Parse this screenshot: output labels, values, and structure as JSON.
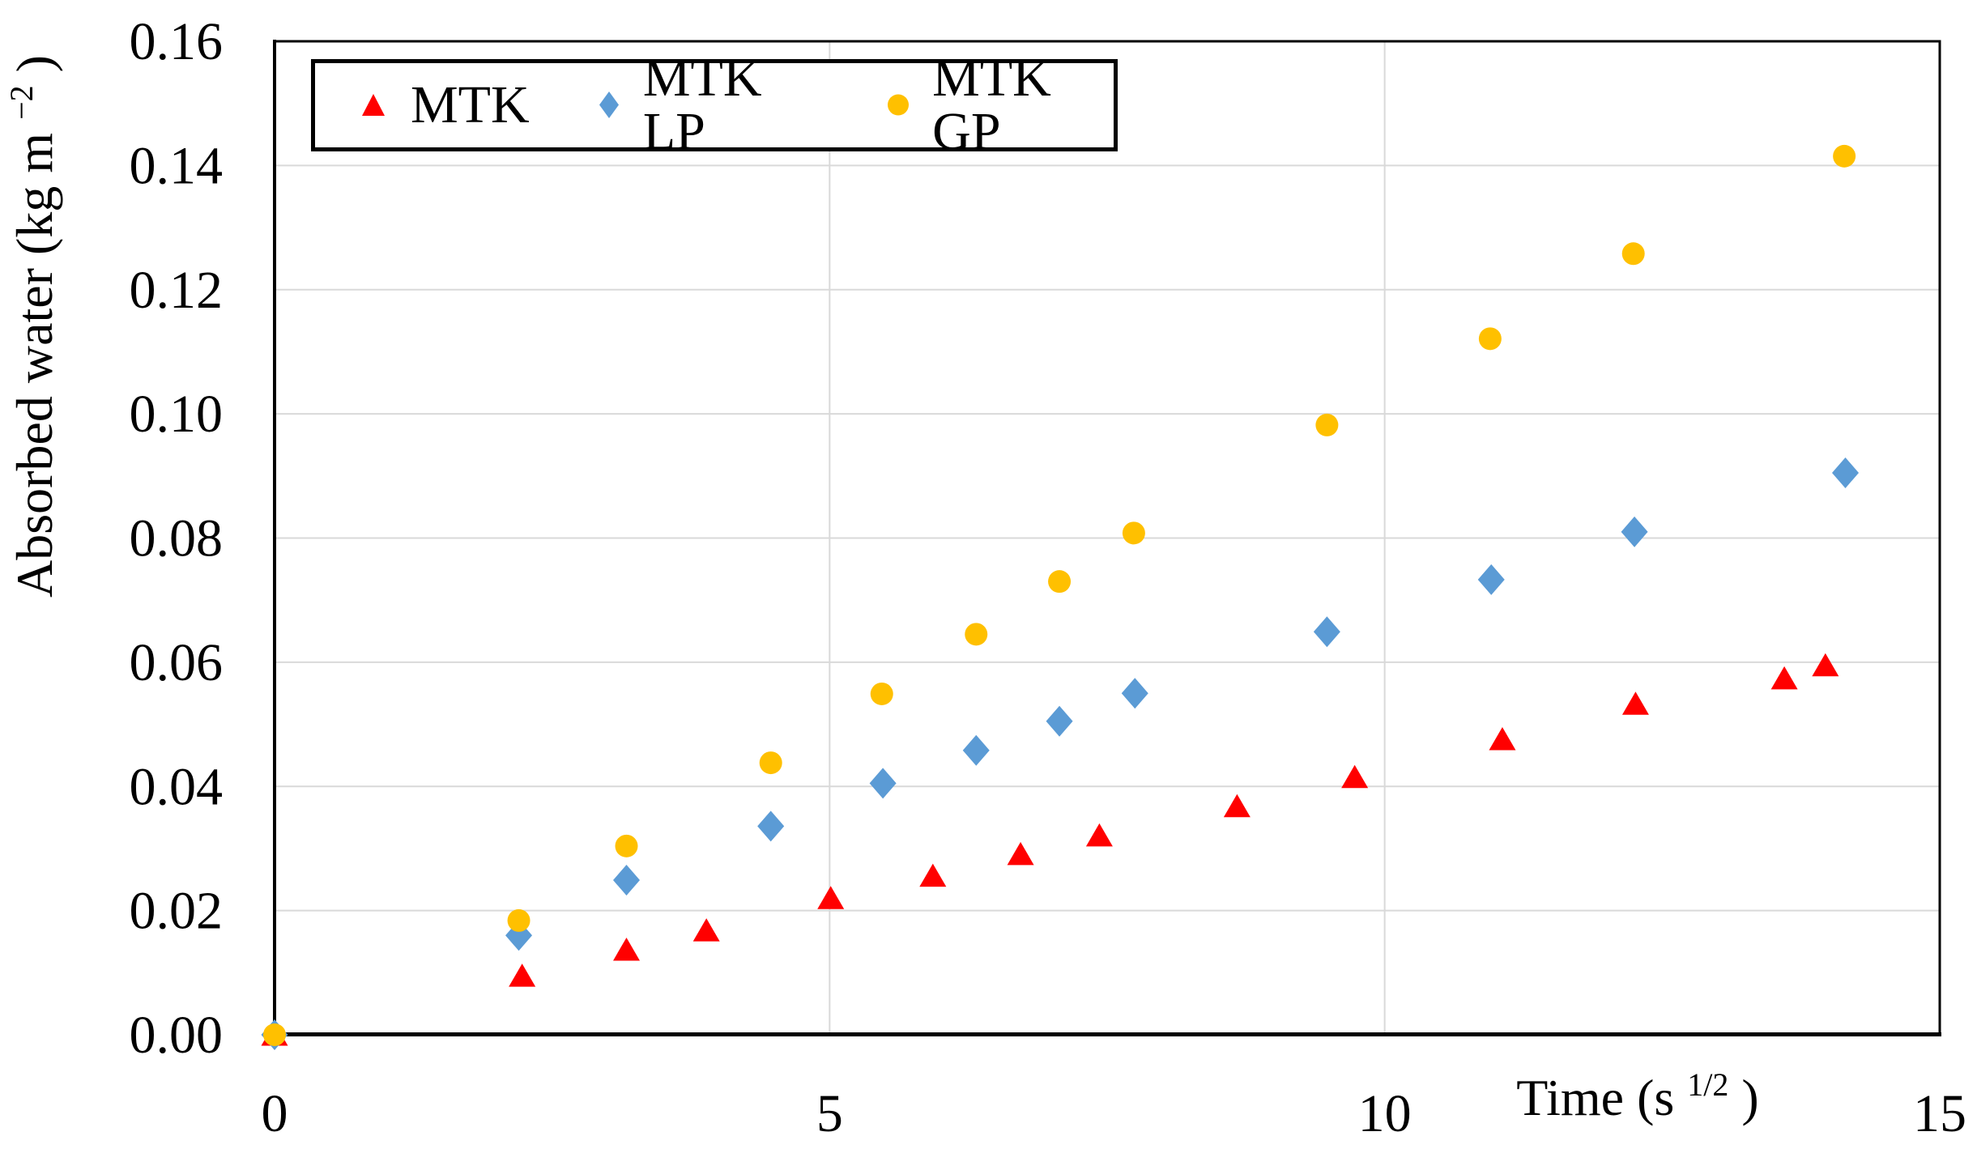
{
  "chart_data": {
    "type": "scatter",
    "title": "",
    "xlabel": "Time (s^1/2)",
    "xlabel_prefix": "Time (s",
    "xlabel_sup": "1/2",
    "xlabel_suffix": ")",
    "ylabel": "Absorbed water (kg m^-2)",
    "ylabel_prefix": "Absorbed water (kg m",
    "ylabel_sup": "−2",
    "ylabel_suffix": ")",
    "xlim": [
      0,
      15
    ],
    "ylim": [
      0,
      0.16
    ],
    "x_ticks": [
      "0",
      "5",
      "10",
      "15"
    ],
    "y_ticks": [
      "0.00",
      "0.02",
      "0.04",
      "0.06",
      "0.08",
      "0.10",
      "0.12",
      "0.14",
      "0.16"
    ],
    "grid": {
      "y_gridline_step": 0.02,
      "x_gridlines_at": [
        5,
        10
      ],
      "color": "#D9D9D9"
    },
    "legend_position": "top-left",
    "colors": {
      "axis": "#000000",
      "background": "#FFFFFF"
    },
    "series": [
      {
        "name": "MTK",
        "marker": "triangle",
        "color": "#FF0000",
        "points": [
          [
            0,
            0
          ],
          [
            2.23,
            0.0095
          ],
          [
            3.17,
            0.0137
          ],
          [
            3.89,
            0.0168
          ],
          [
            5.01,
            0.022
          ],
          [
            5.93,
            0.0256
          ],
          [
            6.72,
            0.0291
          ],
          [
            7.43,
            0.0321
          ],
          [
            8.67,
            0.0368
          ],
          [
            9.73,
            0.0415
          ],
          [
            11.06,
            0.0476
          ],
          [
            12.26,
            0.0533
          ],
          [
            13.6,
            0.0574
          ],
          [
            13.97,
            0.0595
          ]
        ]
      },
      {
        "name": "MTK LP",
        "marker": "diamond",
        "color": "#5B9BD5",
        "points": [
          [
            0,
            0
          ],
          [
            2.2,
            0.016
          ],
          [
            3.17,
            0.0249
          ],
          [
            4.47,
            0.0336
          ],
          [
            5.48,
            0.0405
          ],
          [
            6.32,
            0.0458
          ],
          [
            7.07,
            0.0505
          ],
          [
            7.75,
            0.055
          ],
          [
            9.48,
            0.0649
          ],
          [
            10.96,
            0.0733
          ],
          [
            12.25,
            0.081
          ],
          [
            14.15,
            0.0905
          ]
        ]
      },
      {
        "name": "MTK GP",
        "marker": "circle",
        "color": "#FFC000",
        "points": [
          [
            0,
            0
          ],
          [
            2.2,
            0.0184
          ],
          [
            3.17,
            0.0304
          ],
          [
            4.47,
            0.0438
          ],
          [
            5.47,
            0.0549
          ],
          [
            6.32,
            0.0645
          ],
          [
            7.07,
            0.073
          ],
          [
            7.74,
            0.0808
          ],
          [
            9.48,
            0.0982
          ],
          [
            10.95,
            0.1121
          ],
          [
            12.24,
            0.1258
          ],
          [
            14.14,
            0.1415
          ]
        ]
      }
    ]
  }
}
